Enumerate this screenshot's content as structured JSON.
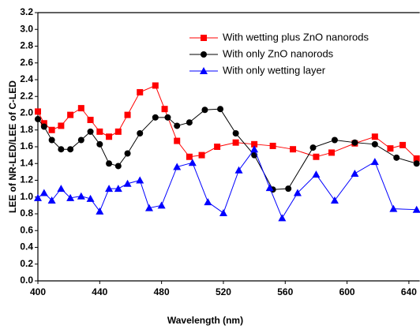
{
  "chart_data": {
    "type": "line",
    "xlabel": "Wavelength (nm)",
    "ylabel": "LEE of NR-LED/LEE of C-LED",
    "xlim": [
      400,
      647
    ],
    "ylim": [
      0,
      3.2
    ],
    "xticks": [
      400,
      440,
      480,
      520,
      560,
      600,
      640
    ],
    "yticks": [
      {
        "value": 0,
        "label": "0.0"
      },
      {
        "value": 0.2,
        "label": "0.2"
      },
      {
        "value": 0.4,
        "label": "0.4"
      },
      {
        "value": 0.6,
        "label": "0.6"
      },
      {
        "value": 0.8,
        "label": "0.8"
      },
      {
        "value": 1.0,
        "label": "1.0"
      },
      {
        "value": 1.2,
        "label": "1.2"
      },
      {
        "value": 1.4,
        "label": "1.4"
      },
      {
        "value": 1.6,
        "label": "1.6"
      },
      {
        "value": 1.8,
        "label": "1.8"
      },
      {
        "value": 2.0,
        "label": "2.0"
      },
      {
        "value": 2.2,
        "label": "2.2"
      },
      {
        "value": 2.4,
        "label": "2.4"
      },
      {
        "value": 2.6,
        "label": "2.6"
      },
      {
        "value": 2.8,
        "label": "2.8"
      },
      {
        "value": 3.0,
        "label": "3.0"
      },
      {
        "value": 3.2,
        "label": "3.2"
      }
    ],
    "legend": "upper right",
    "series": [
      {
        "name": "With wetting plus ZnO nanorods",
        "color": "#ff0000",
        "marker": "square",
        "x": [
          400,
          404,
          409,
          415,
          421,
          428,
          434,
          440,
          446,
          452,
          458,
          466,
          476,
          482,
          490,
          498,
          506,
          516,
          528,
          540,
          552,
          565,
          580,
          590,
          605,
          618,
          628,
          636,
          645
        ],
        "values": [
          2.02,
          1.88,
          1.8,
          1.85,
          1.98,
          2.06,
          1.92,
          1.78,
          1.72,
          1.78,
          1.98,
          2.25,
          2.33,
          2.05,
          1.67,
          1.48,
          1.5,
          1.6,
          1.65,
          1.63,
          1.61,
          1.57,
          1.48,
          1.53,
          1.64,
          1.72,
          1.58,
          1.62,
          1.46
        ]
      },
      {
        "name": "With only ZnO nanorods",
        "color": "#000000",
        "marker": "circle",
        "x": [
          400,
          404,
          409,
          415,
          421,
          428,
          434,
          440,
          446,
          452,
          458,
          466,
          476,
          484,
          490,
          498,
          508,
          518,
          528,
          540,
          552,
          562,
          578,
          592,
          605,
          618,
          632,
          645
        ],
        "values": [
          1.93,
          1.84,
          1.68,
          1.57,
          1.57,
          1.68,
          1.78,
          1.63,
          1.4,
          1.37,
          1.52,
          1.76,
          1.95,
          1.95,
          1.85,
          1.89,
          2.04,
          2.05,
          1.76,
          1.5,
          1.09,
          1.1,
          1.59,
          1.68,
          1.65,
          1.63,
          1.47,
          1.4
        ]
      },
      {
        "name": "With only wetting layer",
        "color": "#0000ff",
        "marker": "triangle",
        "x": [
          400,
          404,
          409,
          415,
          421,
          428,
          434,
          440,
          446,
          452,
          458,
          466,
          472,
          480,
          490,
          500,
          510,
          520,
          530,
          540,
          550,
          558,
          568,
          580,
          592,
          605,
          618,
          630,
          645
        ],
        "values": [
          0.99,
          1.05,
          0.96,
          1.1,
          0.99,
          1.01,
          0.98,
          0.83,
          1.1,
          1.1,
          1.16,
          1.2,
          0.87,
          0.9,
          1.36,
          1.41,
          0.94,
          0.81,
          1.32,
          1.57,
          1.11,
          0.75,
          1.05,
          1.27,
          0.96,
          1.28,
          1.42,
          0.86,
          0.85
        ]
      }
    ]
  }
}
